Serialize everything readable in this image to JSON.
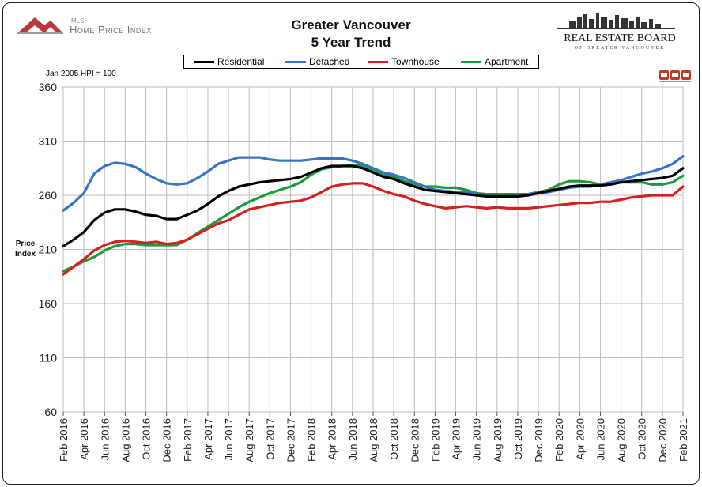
{
  "header": {
    "title_line1": "Greater Vancouver",
    "title_line2": "5 Year Trend",
    "mls_logo_small": "MLS",
    "mls_logo_text": "Home Price Index",
    "board_logo_line1": "REAL ESTATE BOARD",
    "board_logo_line2": "OF GREATER VANCOUVER",
    "base_note": "Jan 2005 HPI = 100",
    "badge_icon": "mls-badge-icon"
  },
  "colors": {
    "Residential": "#000000",
    "Detached": "#3a74c4",
    "Townhouse": "#d42020",
    "Apartment": "#1f9a3a",
    "grid": "#bdbdbd"
  },
  "chart_data": {
    "type": "line",
    "title": "Greater Vancouver 5 Year Trend",
    "ylabel": "Price Index",
    "xlabel": "",
    "ylim": [
      60,
      360
    ],
    "yticks": [
      60,
      110,
      160,
      210,
      260,
      310,
      360
    ],
    "grid": true,
    "legend_position": "top",
    "x_labels": [
      "Feb 2016",
      "Apr 2016",
      "Jun 2016",
      "Aug 2016",
      "Oct 2016",
      "Dec 2016",
      "Feb 2017",
      "Apr 2017",
      "Jun 2017",
      "Aug 2017",
      "Oct 2017",
      "Dec 2017",
      "Feb 2018",
      "Apr 2018",
      "Jun 2018",
      "Aug 2018",
      "Oct 2018",
      "Dec 2018",
      "Feb 2019",
      "Apr 2019",
      "Jun 2019",
      "Aug 2019",
      "Oct 2019",
      "Dec 2019",
      "Feb 2020",
      "Apr 2020",
      "Jun 2020",
      "Aug 2020",
      "Oct 2020",
      "Dec 2020",
      "Feb 2021"
    ],
    "x": [
      "Feb 2016",
      "Mar 2016",
      "Apr 2016",
      "May 2016",
      "Jun 2016",
      "Jul 2016",
      "Aug 2016",
      "Sep 2016",
      "Oct 2016",
      "Nov 2016",
      "Dec 2016",
      "Jan 2017",
      "Feb 2017",
      "Mar 2017",
      "Apr 2017",
      "May 2017",
      "Jun 2017",
      "Jul 2017",
      "Aug 2017",
      "Sep 2017",
      "Oct 2017",
      "Nov 2017",
      "Dec 2017",
      "Jan 2018",
      "Feb 2018",
      "Mar 2018",
      "Apr 2018",
      "May 2018",
      "Jun 2018",
      "Jul 2018",
      "Aug 2018",
      "Sep 2018",
      "Oct 2018",
      "Nov 2018",
      "Dec 2018",
      "Jan 2019",
      "Feb 2019",
      "Mar 2019",
      "Apr 2019",
      "May 2019",
      "Jun 2019",
      "Jul 2019",
      "Aug 2019",
      "Sep 2019",
      "Oct 2019",
      "Nov 2019",
      "Dec 2019",
      "Jan 2020",
      "Feb 2020",
      "Mar 2020",
      "Apr 2020",
      "May 2020",
      "Jun 2020",
      "Jul 2020",
      "Aug 2020",
      "Sep 2020",
      "Oct 2020",
      "Nov 2020",
      "Dec 2020",
      "Jan 2021",
      "Feb 2021"
    ],
    "series": [
      {
        "name": "Residential",
        "values": [
          213,
          219,
          226,
          237,
          244,
          247,
          247,
          245,
          242,
          241,
          238,
          238,
          242,
          246,
          252,
          259,
          264,
          268,
          270,
          272,
          273,
          274,
          275,
          277,
          281,
          285,
          287,
          287,
          287,
          285,
          281,
          277,
          275,
          271,
          268,
          265,
          264,
          263,
          262,
          261,
          260,
          259,
          259,
          259,
          259,
          260,
          262,
          264,
          266,
          268,
          269,
          269,
          269,
          270,
          272,
          273,
          274,
          275,
          276,
          278,
          285
        ]
      },
      {
        "name": "Detached",
        "values": [
          246,
          253,
          262,
          280,
          287,
          290,
          289,
          286,
          280,
          275,
          271,
          270,
          271,
          276,
          282,
          289,
          292,
          295,
          295,
          295,
          293,
          292,
          292,
          292,
          293,
          294,
          294,
          294,
          292,
          289,
          285,
          281,
          279,
          276,
          272,
          268,
          265,
          264,
          263,
          263,
          261,
          260,
          259,
          259,
          260,
          261,
          262,
          263,
          265,
          267,
          268,
          268,
          270,
          272,
          274,
          277,
          280,
          282,
          285,
          289,
          296
        ]
      },
      {
        "name": "Townhouse",
        "values": [
          187,
          194,
          201,
          209,
          214,
          217,
          218,
          217,
          216,
          217,
          215,
          216,
          219,
          224,
          229,
          234,
          237,
          242,
          247,
          249,
          251,
          253,
          254,
          255,
          258,
          263,
          268,
          270,
          271,
          271,
          268,
          264,
          261,
          259,
          255,
          252,
          250,
          248,
          249,
          250,
          249,
          248,
          249,
          248,
          248,
          248,
          249,
          250,
          251,
          252,
          253,
          253,
          254,
          254,
          256,
          258,
          259,
          260,
          260,
          260,
          268
        ]
      },
      {
        "name": "Apartment",
        "values": [
          190,
          194,
          199,
          203,
          209,
          213,
          215,
          215,
          214,
          214,
          214,
          214,
          219,
          225,
          231,
          237,
          243,
          249,
          254,
          258,
          262,
          265,
          268,
          272,
          279,
          284,
          286,
          287,
          288,
          287,
          283,
          279,
          277,
          273,
          270,
          268,
          268,
          267,
          267,
          265,
          262,
          261,
          261,
          261,
          261,
          261,
          263,
          265,
          270,
          273,
          273,
          272,
          270,
          271,
          272,
          272,
          272,
          270,
          270,
          272,
          278
        ]
      }
    ]
  }
}
